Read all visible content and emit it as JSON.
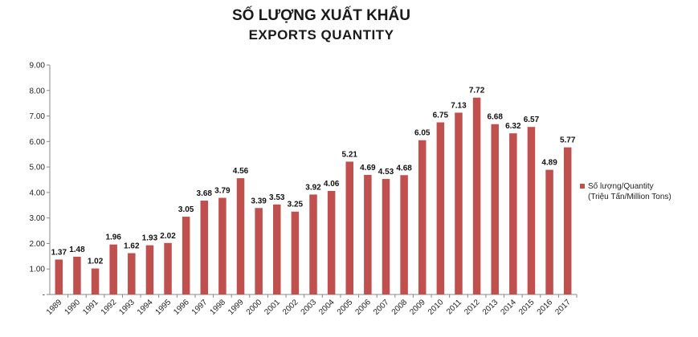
{
  "chart_data": {
    "type": "bar",
    "title": "SỐ LƯỢNG XUẤT KHẨU",
    "subtitle": "EXPORTS QUANTITY",
    "categories": [
      "1989",
      "1990",
      "1991",
      "1992",
      "1993",
      "1994",
      "1995",
      "1996",
      "1997",
      "1998",
      "1999",
      "2000",
      "2001",
      "2002",
      "2003",
      "2004",
      "2005",
      "2006",
      "2007",
      "2008",
      "2009",
      "2010",
      "2011",
      "2012",
      "2013",
      "2014",
      "2015",
      "2016",
      "2017"
    ],
    "series": [
      {
        "name": "Số lượng/Quantity (Triệu Tấn/Million Tons)",
        "legend_line1": "Số lượng/Quantity",
        "legend_line2": "(Triệu Tấn/Million Tons)",
        "color": "#c0504d",
        "values": [
          1.37,
          1.48,
          1.02,
          1.96,
          1.62,
          1.93,
          2.02,
          3.05,
          3.68,
          3.79,
          4.56,
          3.39,
          3.53,
          3.25,
          3.92,
          4.06,
          5.21,
          4.69,
          4.53,
          4.68,
          6.05,
          6.75,
          7.13,
          7.72,
          6.68,
          6.32,
          6.57,
          4.89,
          5.77
        ],
        "labels": [
          "1.37",
          "1.48",
          "1.02",
          "1.96",
          "1.62",
          "1.93",
          "2.02",
          "3.05",
          "3.68",
          "3.79",
          "4.56",
          "3.39",
          "3.53",
          "3.25",
          "3.92",
          "4.06",
          "5.21",
          "4.69",
          "4.53",
          "4.68",
          "6.05",
          "6.75",
          "7.13",
          "7.72",
          "6.68",
          "6.32",
          "6.57",
          "4.89",
          "5.77"
        ]
      }
    ],
    "y_ticks": [
      "-",
      "1.00",
      "2.00",
      "3.00",
      "4.00",
      "5.00",
      "6.00",
      "7.00",
      "8.00",
      "9.00"
    ],
    "ylim": [
      0,
      9
    ],
    "grid": false,
    "legend_position": "right"
  }
}
